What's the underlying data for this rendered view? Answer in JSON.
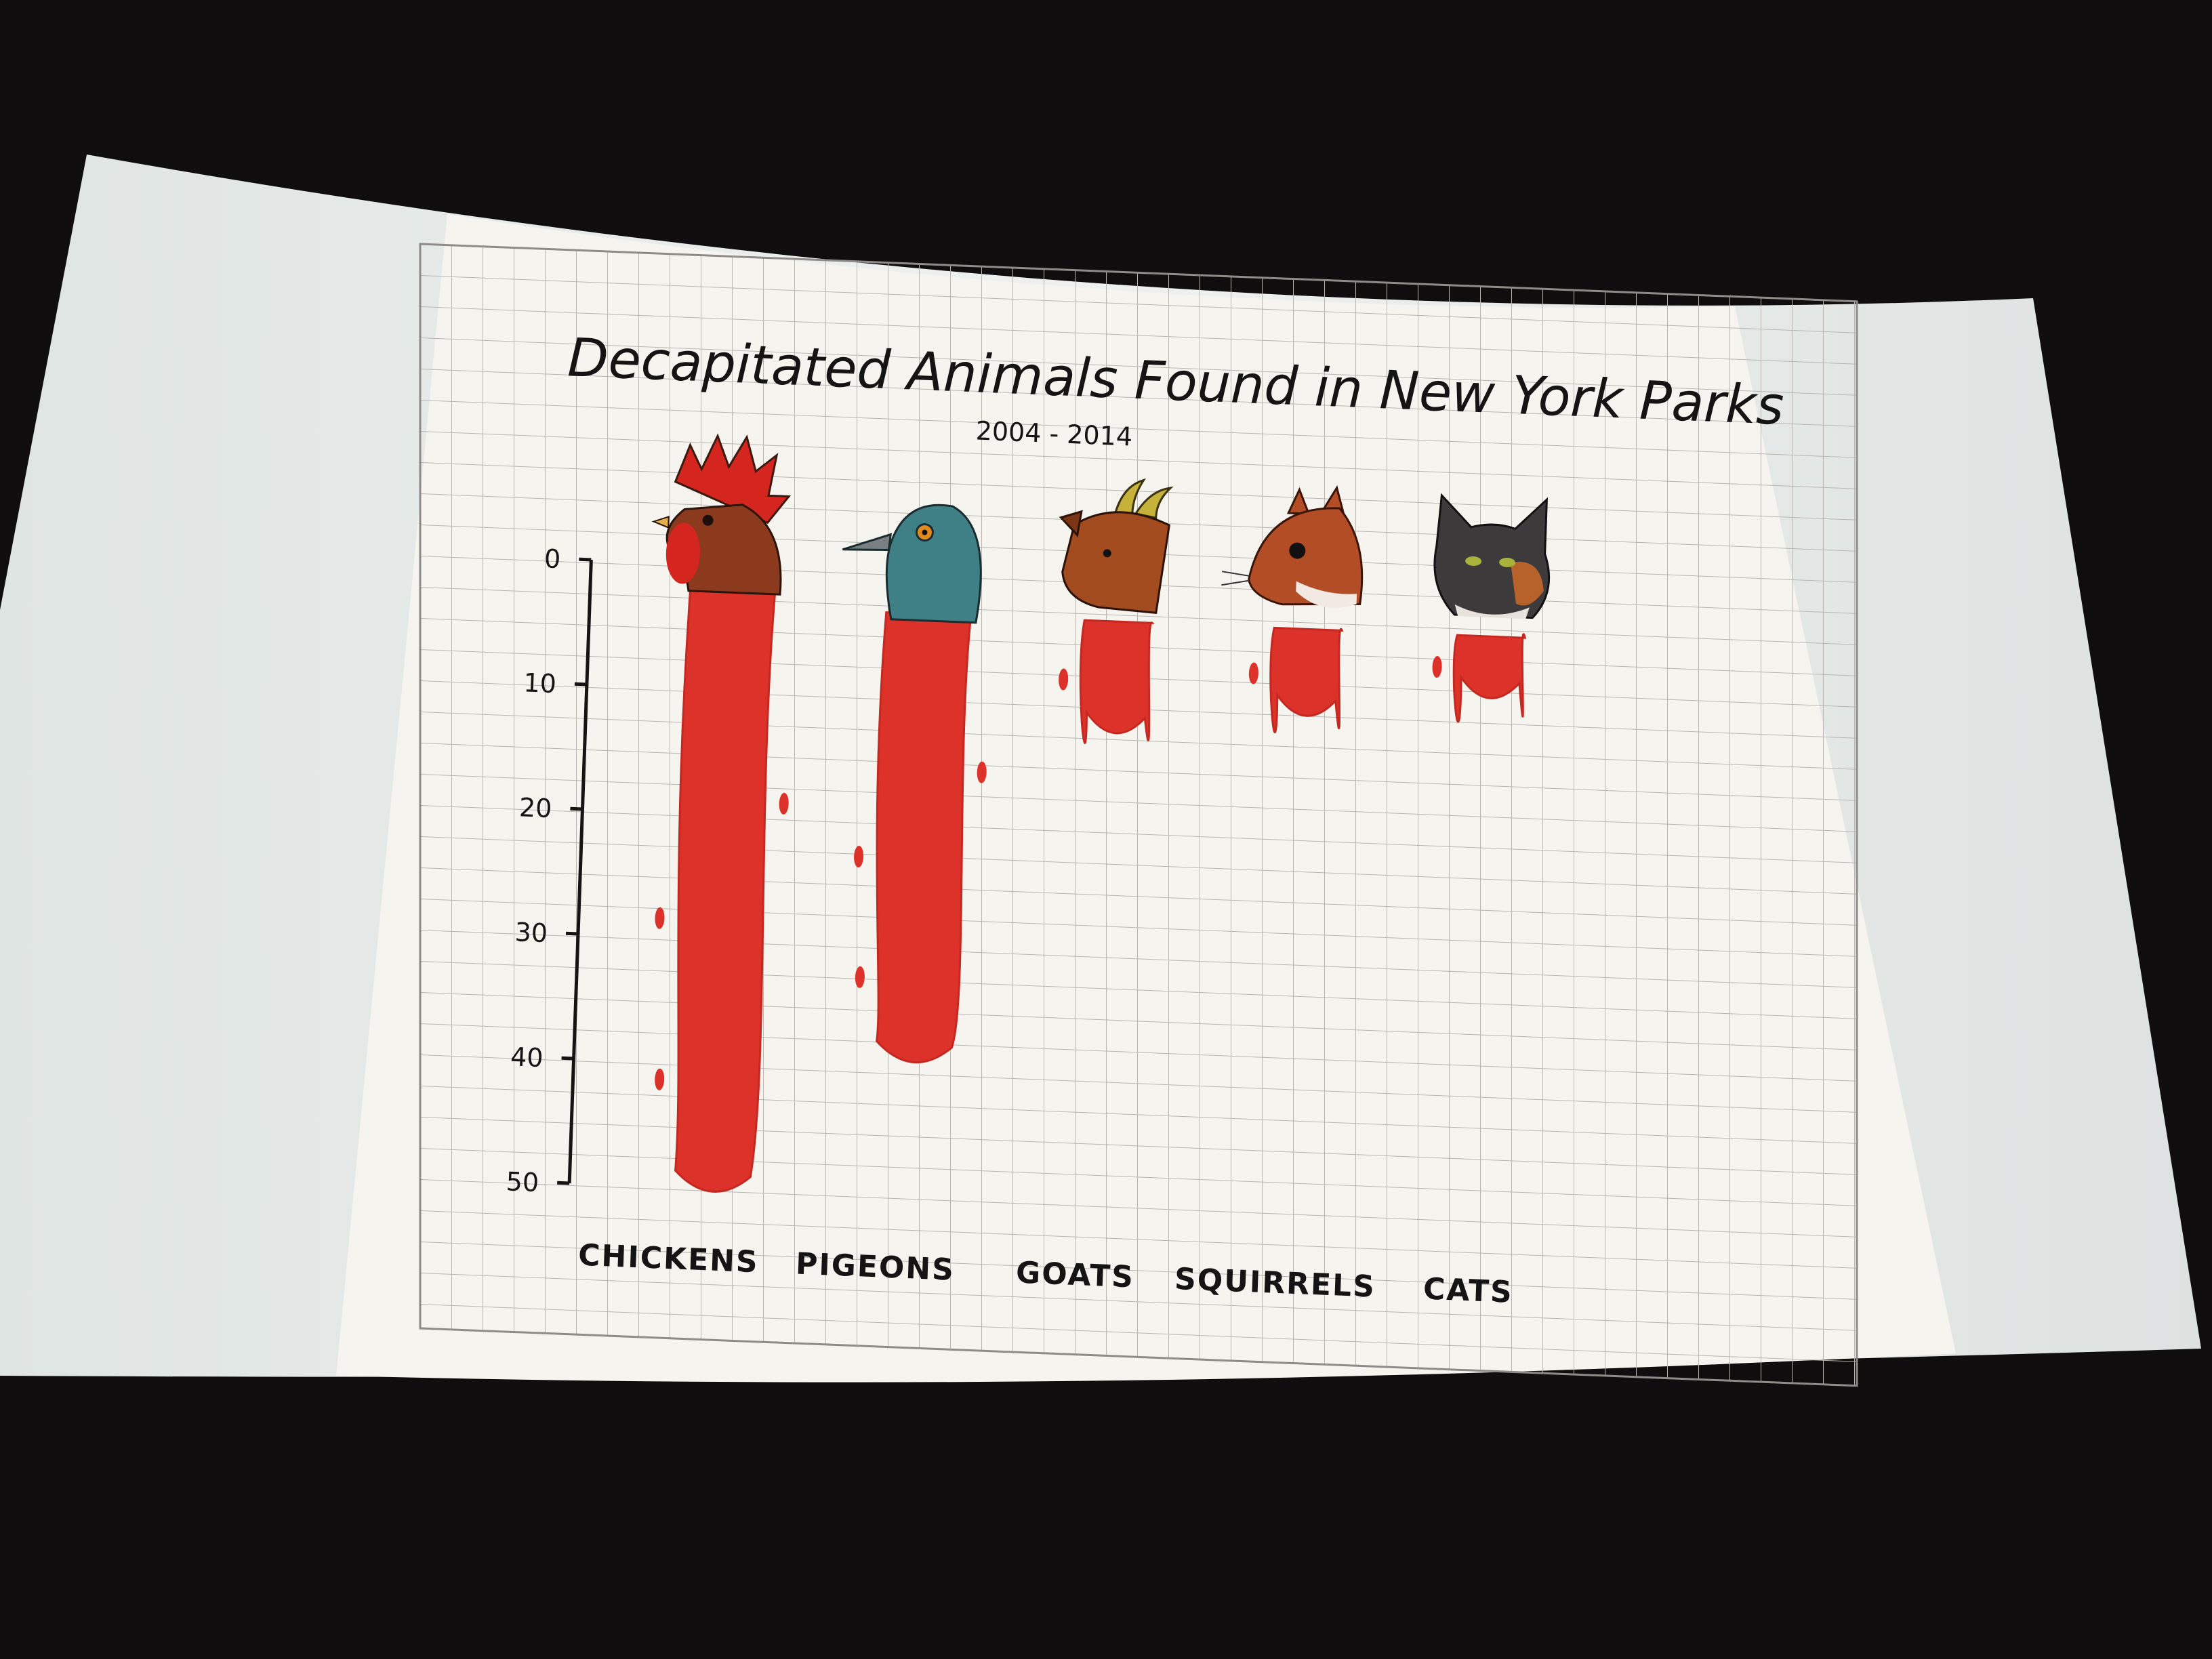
{
  "colors": {
    "background": "#0f0d0e",
    "screen": "#e9eeec",
    "paper": "#f6f4ef",
    "grid": "#b9b6b2",
    "ink": "#141414",
    "blood": "#dc3229",
    "blood_dark": "#c42820"
  },
  "chart_data": {
    "type": "bar",
    "title": "Decapitated Animals Found in New York Parks",
    "subtitle": "2004 - 2014",
    "categories": [
      "CHICKENS",
      "PIGEONS",
      "GOATS",
      "SQUIRRELS",
      "CATS"
    ],
    "values": [
      50,
      39,
      12,
      10,
      8
    ],
    "bar_icons": [
      "rooster-head-icon",
      "pigeon-head-icon",
      "goat-head-icon",
      "squirrel-head-icon",
      "cat-head-icon"
    ],
    "yticks": [
      0,
      10,
      20,
      30,
      40,
      50
    ],
    "ylim": [
      0,
      50
    ],
    "y_axis_inverted": true,
    "grid": true,
    "legend": "none"
  }
}
